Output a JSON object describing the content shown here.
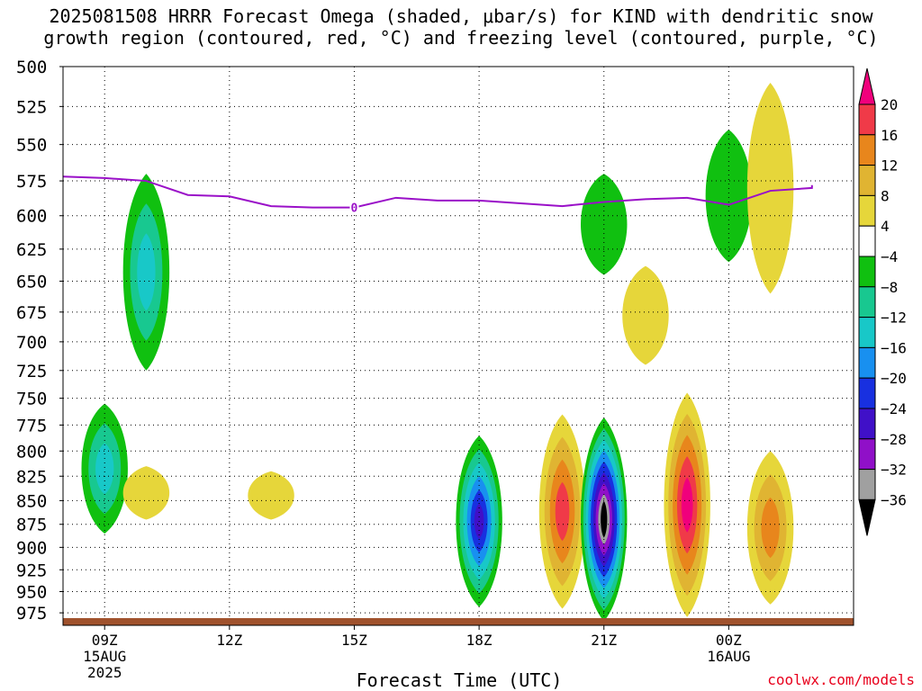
{
  "title": "2025081508 HRRR Forecast Omega (shaded, μbar/s) for KIND with dendritic snow\ngrowth region (contoured, red, °C) and freezing level (contoured, purple, °C)",
  "credit": "coolwx.com/models",
  "chart_data": {
    "type": "heatmap",
    "title": "2025081508 HRRR Forecast Omega (shaded, μbar/s) for KIND with dendritic snow growth region (contoured, red, °C) and freezing level (contoured, purple, °C)",
    "xlabel": "Forecast Time (UTC)",
    "ylabel": "",
    "xlim": [
      "2025-08-15T08:00Z",
      "2025-08-16T03:00Z"
    ],
    "ylim": [
      990,
      500
    ],
    "y_scale": "log-pressure",
    "y_ticks": [
      500,
      525,
      550,
      575,
      600,
      625,
      650,
      675,
      700,
      725,
      750,
      775,
      800,
      825,
      850,
      875,
      900,
      925,
      950,
      975
    ],
    "x_ticks": [
      {
        "x": "2025-08-15T09:00Z",
        "label": "09Z",
        "sub": [
          "15AUG",
          "2025"
        ]
      },
      {
        "x": "2025-08-15T12:00Z",
        "label": "12Z",
        "sub": []
      },
      {
        "x": "2025-08-15T15:00Z",
        "label": "15Z",
        "sub": []
      },
      {
        "x": "2025-08-15T18:00Z",
        "label": "18Z",
        "sub": []
      },
      {
        "x": "2025-08-15T21:00Z",
        "label": "21Z",
        "sub": []
      },
      {
        "x": "2025-08-16T00:00Z",
        "label": "00Z",
        "sub": [
          "16AUG"
        ]
      }
    ],
    "grid": true,
    "colorbar": {
      "labels": [
        "20",
        "16",
        "12",
        "8",
        "4",
        "−4",
        "−8",
        "−12",
        "−16",
        "−20",
        "−24",
        "−28",
        "−32",
        "−36"
      ],
      "levels": [
        20,
        16,
        12,
        8,
        4,
        -4,
        -8,
        -12,
        -16,
        -20,
        -24,
        -28,
        -32,
        -36
      ],
      "colors": [
        "#f0007c",
        "#f03a48",
        "#e8861c",
        "#e0b432",
        "#e6d63a",
        "#ffffff",
        "#10c010",
        "#18c890",
        "#18c8c8",
        "#1890f0",
        "#1830e0",
        "#4010c8",
        "#9010c8",
        "#a0a0a0",
        "#000000"
      ]
    },
    "freezing_level": {
      "color": "#9a10c8",
      "label": "0",
      "points": [
        [
          "2025-08-15T08:00Z",
          572
        ],
        [
          "2025-08-15T09:00Z",
          573
        ],
        [
          "2025-08-15T10:00Z",
          575
        ],
        [
          "2025-08-15T11:00Z",
          585
        ],
        [
          "2025-08-15T12:00Z",
          586
        ],
        [
          "2025-08-15T13:00Z",
          593
        ],
        [
          "2025-08-15T14:00Z",
          594
        ],
        [
          "2025-08-15T15:00Z",
          594
        ],
        [
          "2025-08-15T16:00Z",
          587
        ],
        [
          "2025-08-15T17:00Z",
          589
        ],
        [
          "2025-08-15T18:00Z",
          589
        ],
        [
          "2025-08-15T19:00Z",
          591
        ],
        [
          "2025-08-15T20:00Z",
          593
        ],
        [
          "2025-08-15T21:00Z",
          590
        ],
        [
          "2025-08-15T22:00Z",
          588
        ],
        [
          "2025-08-15T23:00Z",
          587
        ],
        [
          "2025-08-16T00:00Z",
          592
        ],
        [
          "2025-08-16T01:00Z",
          582
        ],
        [
          "2025-08-16T02:00Z",
          580
        ],
        [
          "2025-08-16T02:00Z",
          578
        ]
      ]
    },
    "omega_features": [
      {
        "time": "2025-08-15T09:00Z",
        "top": 755,
        "bottom": 885,
        "omega_extreme": -13
      },
      {
        "time": "2025-08-15T10:00Z",
        "top": 570,
        "bottom": 725,
        "omega_extreme": -13
      },
      {
        "time": "2025-08-15T10:00Z",
        "top": 815,
        "bottom": 870,
        "omega_extreme": 5
      },
      {
        "time": "2025-08-15T13:00Z",
        "top": 820,
        "bottom": 870,
        "omega_extreme": 5
      },
      {
        "time": "2025-08-15T18:00Z",
        "top": 785,
        "bottom": 968,
        "omega_extreme": -26
      },
      {
        "time": "2025-08-15T20:00Z",
        "top": 765,
        "bottom": 970,
        "omega_extreme": 18
      },
      {
        "time": "2025-08-15T21:00Z",
        "top": 768,
        "bottom": 985,
        "omega_extreme": -38
      },
      {
        "time": "2025-08-15T21:00Z",
        "top": 570,
        "bottom": 645,
        "omega_extreme": -6
      },
      {
        "time": "2025-08-15T22:00Z",
        "top": 638,
        "bottom": 720,
        "omega_extreme": 5
      },
      {
        "time": "2025-08-15T23:00Z",
        "top": 745,
        "bottom": 980,
        "omega_extreme": 22
      },
      {
        "time": "2025-08-16T00:00Z",
        "top": 540,
        "bottom": 635,
        "omega_extreme": -6
      },
      {
        "time": "2025-08-16T01:00Z",
        "top": 510,
        "bottom": 660,
        "omega_extreme": 5
      },
      {
        "time": "2025-08-16T01:00Z",
        "top": 800,
        "bottom": 965,
        "omega_extreme": 12
      }
    ],
    "ground_color": "#a0522d"
  }
}
